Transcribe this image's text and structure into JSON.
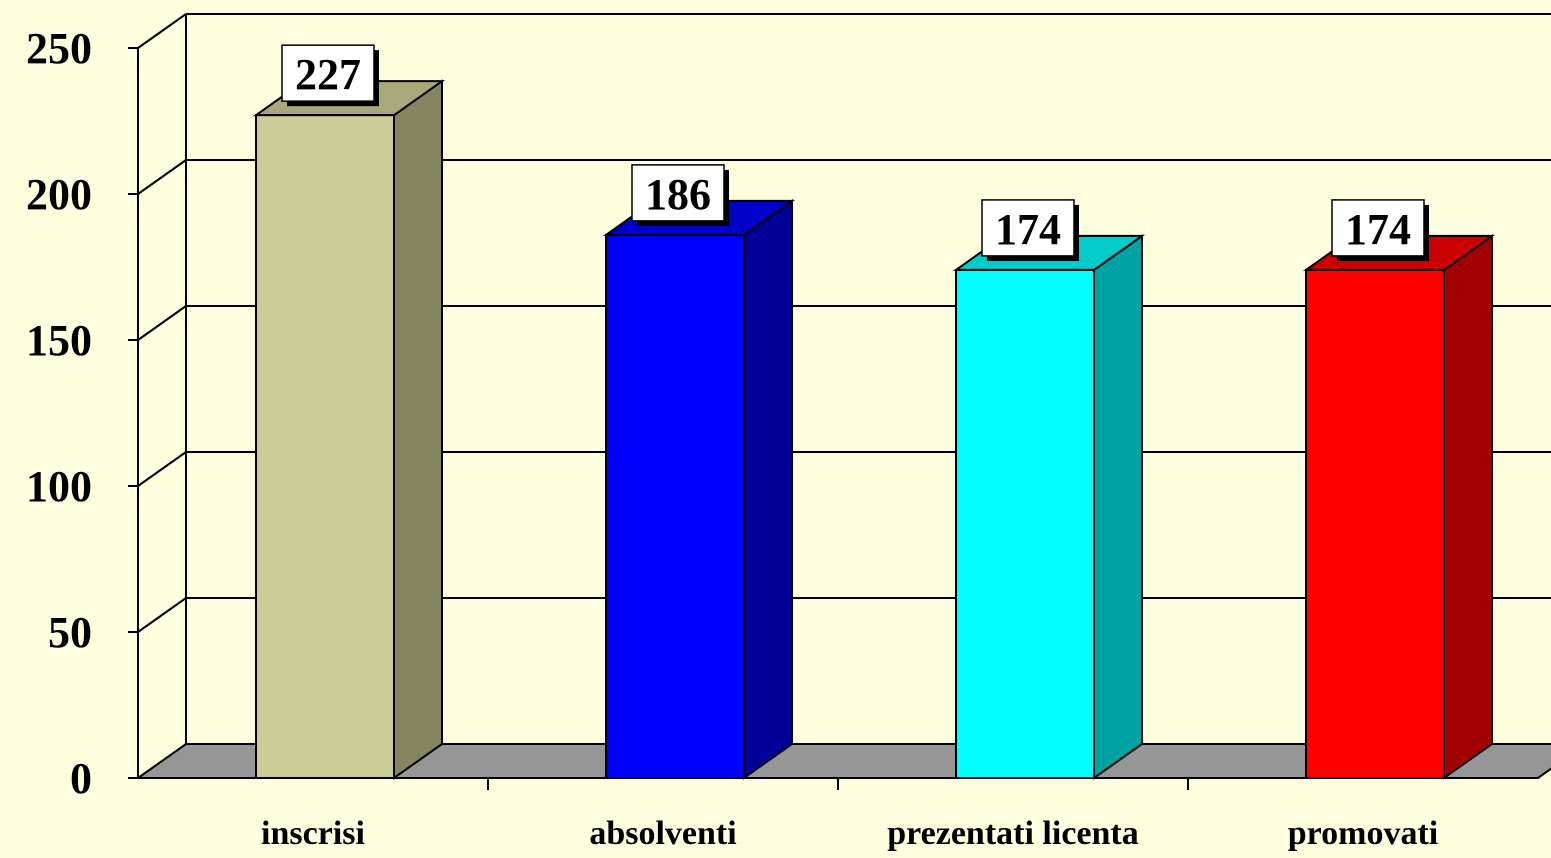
{
  "chart_data": {
    "type": "bar",
    "categories": [
      "inscrisi",
      "absolventi",
      "prezentati licenta",
      "promovati"
    ],
    "values": [
      227,
      186,
      174,
      174
    ],
    "data_labels": [
      "227",
      "186",
      "174",
      "174"
    ],
    "ylim": [
      0,
      250
    ],
    "yticks": [
      0,
      50,
      100,
      150,
      200,
      250
    ],
    "ytick_labels": [
      "0",
      "50",
      "100",
      "150",
      "200",
      "250"
    ],
    "grid": true,
    "three_d": true,
    "colors": {
      "background": "#FFFFE0",
      "floor": "#969696",
      "gridline": "#000000",
      "bars": [
        {
          "front": "#CCCC99",
          "side": "#85855F",
          "top": "#A8A87A"
        },
        {
          "front": "#0000FF",
          "side": "#000099",
          "top": "#0000CC"
        },
        {
          "front": "#00FFFF",
          "side": "#00A3A3",
          "top": "#00CCCC"
        },
        {
          "front": "#FF0000",
          "side": "#A30000",
          "top": "#CC0000"
        }
      ]
    }
  }
}
